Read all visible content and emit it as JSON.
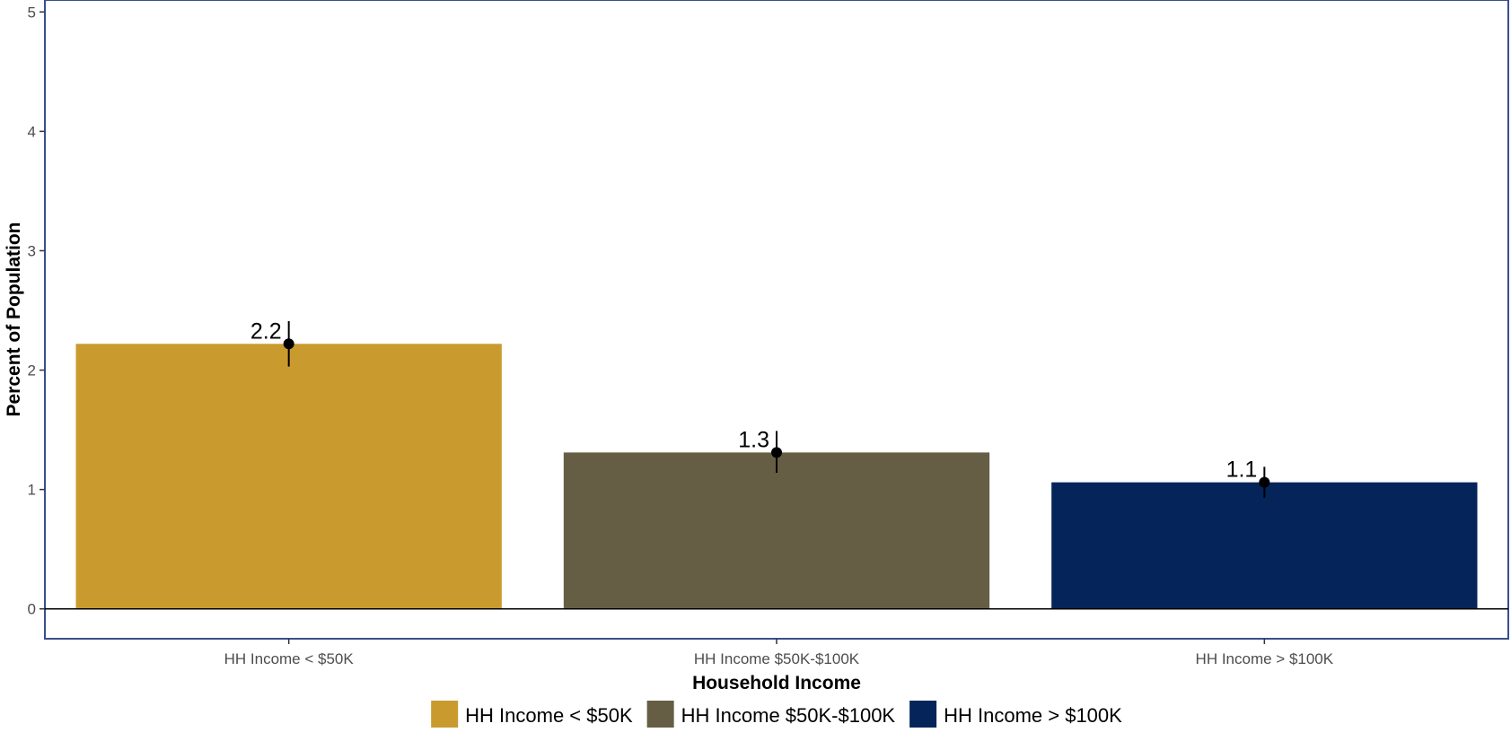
{
  "chart_data": {
    "type": "bar",
    "title": "",
    "xlabel": "Household Income",
    "ylabel": "Percent of Population",
    "categories": [
      "HH Income < $50K",
      "HH Income $50K-$100K",
      "HH Income > $100K"
    ],
    "values": [
      2.22,
      1.31,
      1.06
    ],
    "value_labels": [
      "2.2",
      "1.3",
      "1.1"
    ],
    "error_low": [
      2.03,
      1.14,
      0.93
    ],
    "error_high": [
      2.41,
      1.49,
      1.19
    ],
    "colors": [
      "#C99A2E",
      "#665E44",
      "#04245A"
    ],
    "ylim": [
      -0.25,
      5.1
    ],
    "yticks": [
      0,
      1,
      2,
      3,
      4,
      5
    ],
    "ytick_labels": [
      "0",
      "1",
      "2",
      "3",
      "4",
      "5"
    ],
    "grid": false,
    "legend_position": "bottom",
    "legend": [
      "HH Income < $50K",
      "HH Income $50K-$100K",
      "HH Income > $100K"
    ],
    "panel_border_color": "#3A4E8C"
  }
}
